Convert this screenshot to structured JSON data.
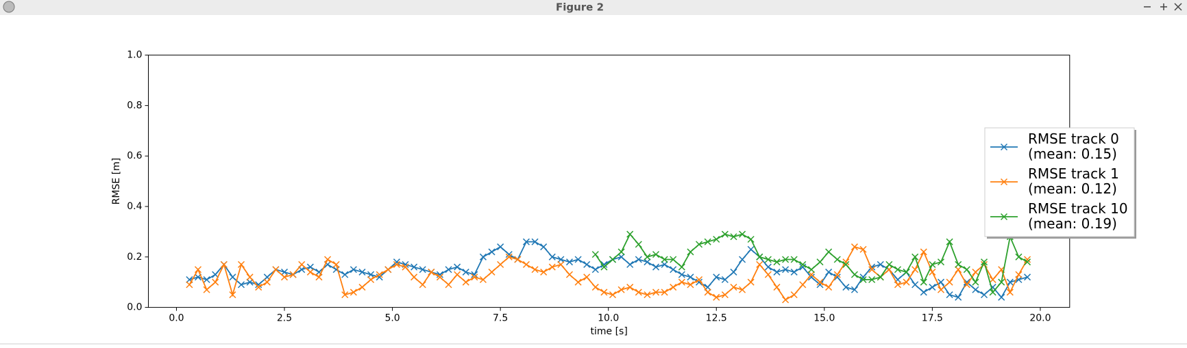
{
  "window_title": "Figure 2",
  "chart_data": {
    "type": "line",
    "xlabel": "time [s]",
    "ylabel": "RMSE [m]",
    "xlim": [
      -0.65,
      20.68
    ],
    "ylim": [
      0,
      1
    ],
    "xticks": [
      {
        "value": 0,
        "label": "0.0"
      },
      2.5,
      {
        "value": 5,
        "label": "5.0"
      },
      7.5,
      {
        "value": 10,
        "label": "10.0"
      },
      12.5,
      {
        "value": 15,
        "label": "15.0"
      },
      17.5,
      {
        "value": 20,
        "label": "20.0"
      }
    ],
    "yticks": [
      {
        "value": 0,
        "label": "0.0"
      },
      0.2,
      0.4,
      0.6,
      0.8,
      {
        "value": 1,
        "label": "1.0"
      }
    ],
    "grid": false,
    "legend_position": "right",
    "marker": "x",
    "x": [
      0.3,
      0.5,
      0.7,
      0.9,
      1.1,
      1.3,
      1.5,
      1.7,
      1.9,
      2.1,
      2.3,
      2.5,
      2.7,
      2.9,
      3.1,
      3.3,
      3.5,
      3.7,
      3.9,
      4.1,
      4.3,
      4.5,
      4.7,
      4.9,
      5.1,
      5.3,
      5.5,
      5.7,
      5.9,
      6.1,
      6.3,
      6.5,
      6.7,
      6.9,
      7.1,
      7.3,
      7.5,
      7.7,
      7.9,
      8.1,
      8.3,
      8.5,
      8.7,
      8.9,
      9.1,
      9.3,
      9.5,
      9.7,
      9.9,
      10.1,
      10.3,
      10.5,
      10.7,
      10.9,
      11.1,
      11.3,
      11.5,
      11.7,
      11.9,
      12.1,
      12.3,
      12.5,
      12.7,
      12.9,
      13.1,
      13.3,
      13.5,
      13.7,
      13.9,
      14.1,
      14.3,
      14.5,
      14.7,
      14.9,
      15.1,
      15.3,
      15.5,
      15.7,
      15.9,
      16.1,
      16.3,
      16.5,
      16.7,
      16.9,
      17.1,
      17.3,
      17.5,
      17.7,
      17.9,
      18.1,
      18.3,
      18.5,
      18.7,
      18.9,
      19.1,
      19.3,
      19.5,
      19.7
    ],
    "series": [
      {
        "name": "RMSE track 0\n(mean: 0.15)",
        "color": "#1f77b4",
        "values": [
          0.11,
          0.12,
          0.11,
          0.13,
          0.17,
          0.12,
          0.09,
          0.1,
          0.09,
          0.12,
          0.15,
          0.14,
          0.13,
          0.15,
          0.16,
          0.14,
          0.17,
          0.15,
          0.13,
          0.15,
          0.14,
          0.13,
          0.12,
          0.15,
          0.18,
          0.17,
          0.16,
          0.15,
          0.14,
          0.13,
          0.15,
          0.16,
          0.14,
          0.13,
          0.2,
          0.22,
          0.24,
          0.21,
          0.19,
          0.26,
          0.26,
          0.24,
          0.2,
          0.19,
          0.18,
          0.19,
          0.17,
          0.15,
          0.17,
          0.19,
          0.2,
          0.17,
          0.19,
          0.18,
          0.16,
          0.17,
          0.15,
          0.13,
          0.12,
          0.1,
          0.08,
          0.12,
          0.11,
          0.14,
          0.19,
          0.23,
          0.2,
          0.16,
          0.14,
          0.15,
          0.14,
          0.16,
          0.12,
          0.09,
          0.14,
          0.12,
          0.08,
          0.07,
          0.12,
          0.16,
          0.17,
          0.15,
          0.11,
          0.14,
          0.09,
          0.06,
          0.08,
          0.1,
          0.05,
          0.04,
          0.1,
          0.07,
          0.05,
          0.08,
          0.04,
          0.1,
          0.11,
          0.12
        ]
      },
      {
        "name": "RMSE track 1\n(mean: 0.12)",
        "color": "#ff7f0e",
        "values": [
          0.09,
          0.15,
          0.07,
          0.1,
          0.17,
          0.05,
          0.17,
          0.12,
          0.08,
          0.1,
          0.15,
          0.12,
          0.13,
          0.17,
          0.14,
          0.12,
          0.19,
          0.17,
          0.05,
          0.06,
          0.08,
          0.11,
          0.13,
          0.15,
          0.17,
          0.16,
          0.12,
          0.09,
          0.14,
          0.12,
          0.09,
          0.13,
          0.1,
          0.12,
          0.11,
          0.14,
          0.17,
          0.2,
          0.19,
          0.17,
          0.15,
          0.14,
          0.16,
          0.17,
          0.13,
          0.1,
          0.12,
          0.08,
          0.06,
          0.05,
          0.07,
          0.08,
          0.06,
          0.05,
          0.06,
          0.06,
          0.08,
          0.1,
          0.09,
          0.11,
          0.06,
          0.04,
          0.05,
          0.08,
          0.07,
          0.1,
          0.17,
          0.13,
          0.08,
          0.03,
          0.05,
          0.09,
          0.13,
          0.1,
          0.08,
          0.13,
          0.18,
          0.24,
          0.23,
          0.15,
          0.12,
          0.15,
          0.09,
          0.1,
          0.15,
          0.22,
          0.14,
          0.07,
          0.1,
          0.15,
          0.09,
          0.14,
          0.17,
          0.11,
          0.15,
          0.06,
          0.13,
          0.19
        ]
      },
      {
        "name": "RMSE track 10\n(mean: 0.19)",
        "color": "#2ca02c",
        "values": [
          null,
          null,
          null,
          null,
          null,
          null,
          null,
          null,
          null,
          null,
          null,
          null,
          null,
          null,
          null,
          null,
          null,
          null,
          null,
          null,
          null,
          null,
          null,
          null,
          null,
          null,
          null,
          null,
          null,
          null,
          null,
          null,
          null,
          null,
          null,
          null,
          null,
          null,
          null,
          null,
          null,
          null,
          null,
          null,
          null,
          null,
          null,
          0.21,
          0.16,
          0.19,
          0.22,
          0.29,
          0.25,
          0.2,
          0.21,
          0.19,
          0.19,
          0.16,
          0.22,
          0.25,
          0.26,
          0.27,
          0.29,
          0.28,
          0.29,
          0.27,
          0.2,
          0.19,
          0.18,
          0.19,
          0.19,
          0.17,
          0.15,
          0.18,
          0.22,
          0.19,
          0.17,
          0.13,
          0.11,
          0.11,
          0.12,
          0.17,
          0.15,
          0.14,
          0.2,
          0.1,
          0.17,
          0.18,
          0.26,
          0.17,
          0.15,
          0.1,
          0.18,
          0.06,
          0.1,
          0.28,
          0.2,
          0.18
        ]
      }
    ]
  }
}
